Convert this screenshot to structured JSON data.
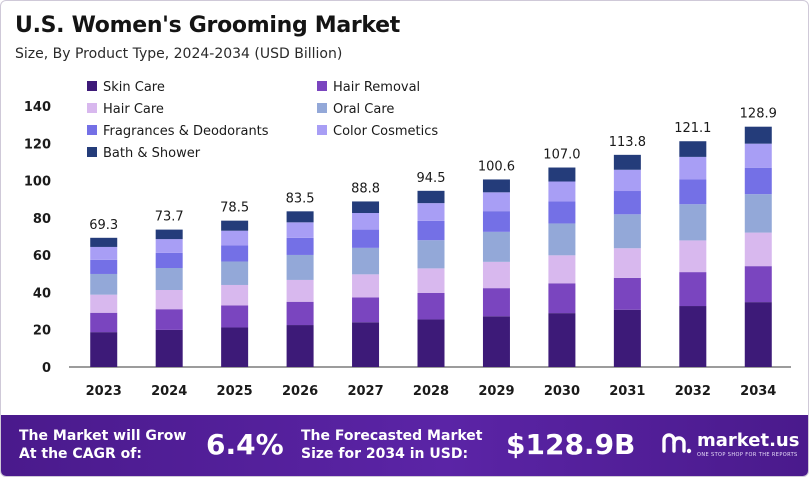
{
  "header": {
    "title": "U.S. Women's Grooming Market",
    "subtitle": "Size, By Product Type, 2024-2034 (USD Billion)"
  },
  "chart_data": {
    "type": "bar",
    "stacked": true,
    "categories": [
      "2023",
      "2024",
      "2025",
      "2026",
      "2027",
      "2028",
      "2029",
      "2030",
      "2031",
      "2032",
      "2034"
    ],
    "totals": [
      69.3,
      73.7,
      78.5,
      83.5,
      88.8,
      94.5,
      100.6,
      107.0,
      113.8,
      121.1,
      128.9
    ],
    "total_labels": [
      "69.3",
      "73.7",
      "78.5",
      "83.5",
      "88.8",
      "94.5",
      "100.6",
      "107.0",
      "113.8",
      "121.1",
      "128.9"
    ],
    "ylim": [
      0,
      140
    ],
    "yticks": [
      0,
      20,
      40,
      60,
      80,
      100,
      120,
      140
    ],
    "grid": false,
    "legend_position": "top-left",
    "series": [
      {
        "name": "Skin Care",
        "color": "#3d1a78",
        "values": [
          18.7,
          19.9,
          21.2,
          22.5,
          24.0,
          25.5,
          27.2,
          28.9,
          30.7,
          32.7,
          34.8
        ]
      },
      {
        "name": "Hair Removal",
        "color": "#7a45bf",
        "values": [
          10.4,
          11.1,
          11.8,
          12.5,
          13.3,
          14.2,
          15.1,
          16.0,
          17.1,
          18.2,
          19.3
        ]
      },
      {
        "name": "Hair Care",
        "color": "#d8b8ee",
        "values": [
          9.7,
          10.3,
          11.0,
          11.7,
          12.4,
          13.2,
          14.1,
          15.0,
          15.9,
          17.0,
          18.0
        ]
      },
      {
        "name": "Oral Care",
        "color": "#93a8d8",
        "values": [
          11.1,
          11.8,
          12.6,
          13.4,
          14.2,
          15.1,
          16.1,
          17.1,
          18.2,
          19.4,
          20.6
        ]
      },
      {
        "name": "Fragrances & Deodorants",
        "color": "#7470e6",
        "values": [
          7.6,
          8.1,
          8.6,
          9.2,
          9.8,
          10.4,
          11.1,
          11.8,
          12.5,
          13.3,
          14.2
        ]
      },
      {
        "name": "Color Cosmetics",
        "color": "#a89ef5",
        "values": [
          6.9,
          7.4,
          7.9,
          8.3,
          8.9,
          9.5,
          10.1,
          10.7,
          11.4,
          12.1,
          12.9
        ]
      },
      {
        "name": "Bath & Shower",
        "color": "#243c7a",
        "values": [
          4.9,
          5.1,
          5.4,
          5.9,
          6.2,
          6.6,
          6.9,
          7.5,
          8.0,
          8.4,
          9.1
        ]
      }
    ]
  },
  "footer": {
    "cagr_label_line1": "The Market will Grow",
    "cagr_label_line2": "At the CAGR of:",
    "cagr_value": "6.4%",
    "forecast_label_line1": "The Forecasted Market",
    "forecast_label_line2": "Size for 2034 in USD:",
    "forecast_value": "$128.9B",
    "brand_name": "market.us",
    "brand_tagline": "ONE STOP SHOP FOR THE REPORTS",
    "brand_icon": "market-us-logo-icon"
  }
}
